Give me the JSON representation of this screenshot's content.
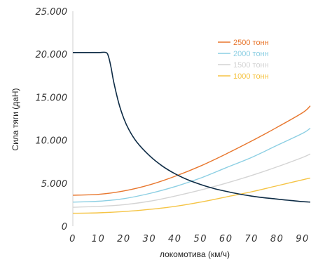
{
  "chart_data": {
    "type": "line",
    "xlabel": "локомотива (км/ч)",
    "ylabel": "Сила тяги (даН)",
    "xlim": [
      0,
      93
    ],
    "ylim": [
      0,
      25000
    ],
    "x_ticks": [
      "0",
      "10",
      "20",
      "30",
      "40",
      "50",
      "60",
      "70",
      "80",
      "90"
    ],
    "y_ticks": [
      "0",
      "5.000",
      "10.000",
      "15.000",
      "20.000",
      "25.000"
    ],
    "grid": false,
    "legend_position": "top-right",
    "traction_curve": {
      "color": "#0d2b45",
      "x": [
        0,
        5,
        10,
        13,
        14,
        15,
        16,
        18,
        20,
        22,
        25,
        30,
        35,
        40,
        45,
        50,
        55,
        60,
        65,
        70,
        75,
        80,
        85,
        90,
        93
      ],
      "y": [
        20200,
        20200,
        20200,
        20200,
        19700,
        18400,
        16800,
        14300,
        12500,
        11200,
        9800,
        8200,
        7000,
        6100,
        5400,
        4850,
        4400,
        4050,
        3750,
        3500,
        3300,
        3150,
        3000,
        2850,
        2800
      ]
    },
    "series": [
      {
        "name": "2500 тонн",
        "color": "#e8772e",
        "x": [
          0,
          10,
          20,
          30,
          40,
          50,
          60,
          70,
          80,
          90,
          93
        ],
        "y": [
          3600,
          3700,
          4100,
          4800,
          5800,
          7000,
          8400,
          9900,
          11500,
          13200,
          14000
        ]
      },
      {
        "name": "2000 тонн",
        "color": "#8ccfe3",
        "x": [
          0,
          10,
          20,
          30,
          40,
          50,
          60,
          70,
          80,
          90,
          93
        ],
        "y": [
          2800,
          2900,
          3200,
          3800,
          4600,
          5600,
          6800,
          8000,
          9400,
          10800,
          11400
        ]
      },
      {
        "name": "1500 тонн",
        "color": "#d4d4d4",
        "x": [
          0,
          10,
          20,
          30,
          40,
          50,
          60,
          70,
          80,
          90,
          93
        ],
        "y": [
          2200,
          2300,
          2500,
          2900,
          3500,
          4200,
          5000,
          5900,
          6900,
          8000,
          8400
        ]
      },
      {
        "name": "1000 тонн",
        "color": "#f5c445",
        "x": [
          0,
          10,
          20,
          30,
          40,
          50,
          60,
          70,
          80,
          90,
          93
        ],
        "y": [
          1500,
          1550,
          1700,
          1950,
          2300,
          2800,
          3400,
          4000,
          4700,
          5400,
          5600
        ]
      }
    ]
  }
}
